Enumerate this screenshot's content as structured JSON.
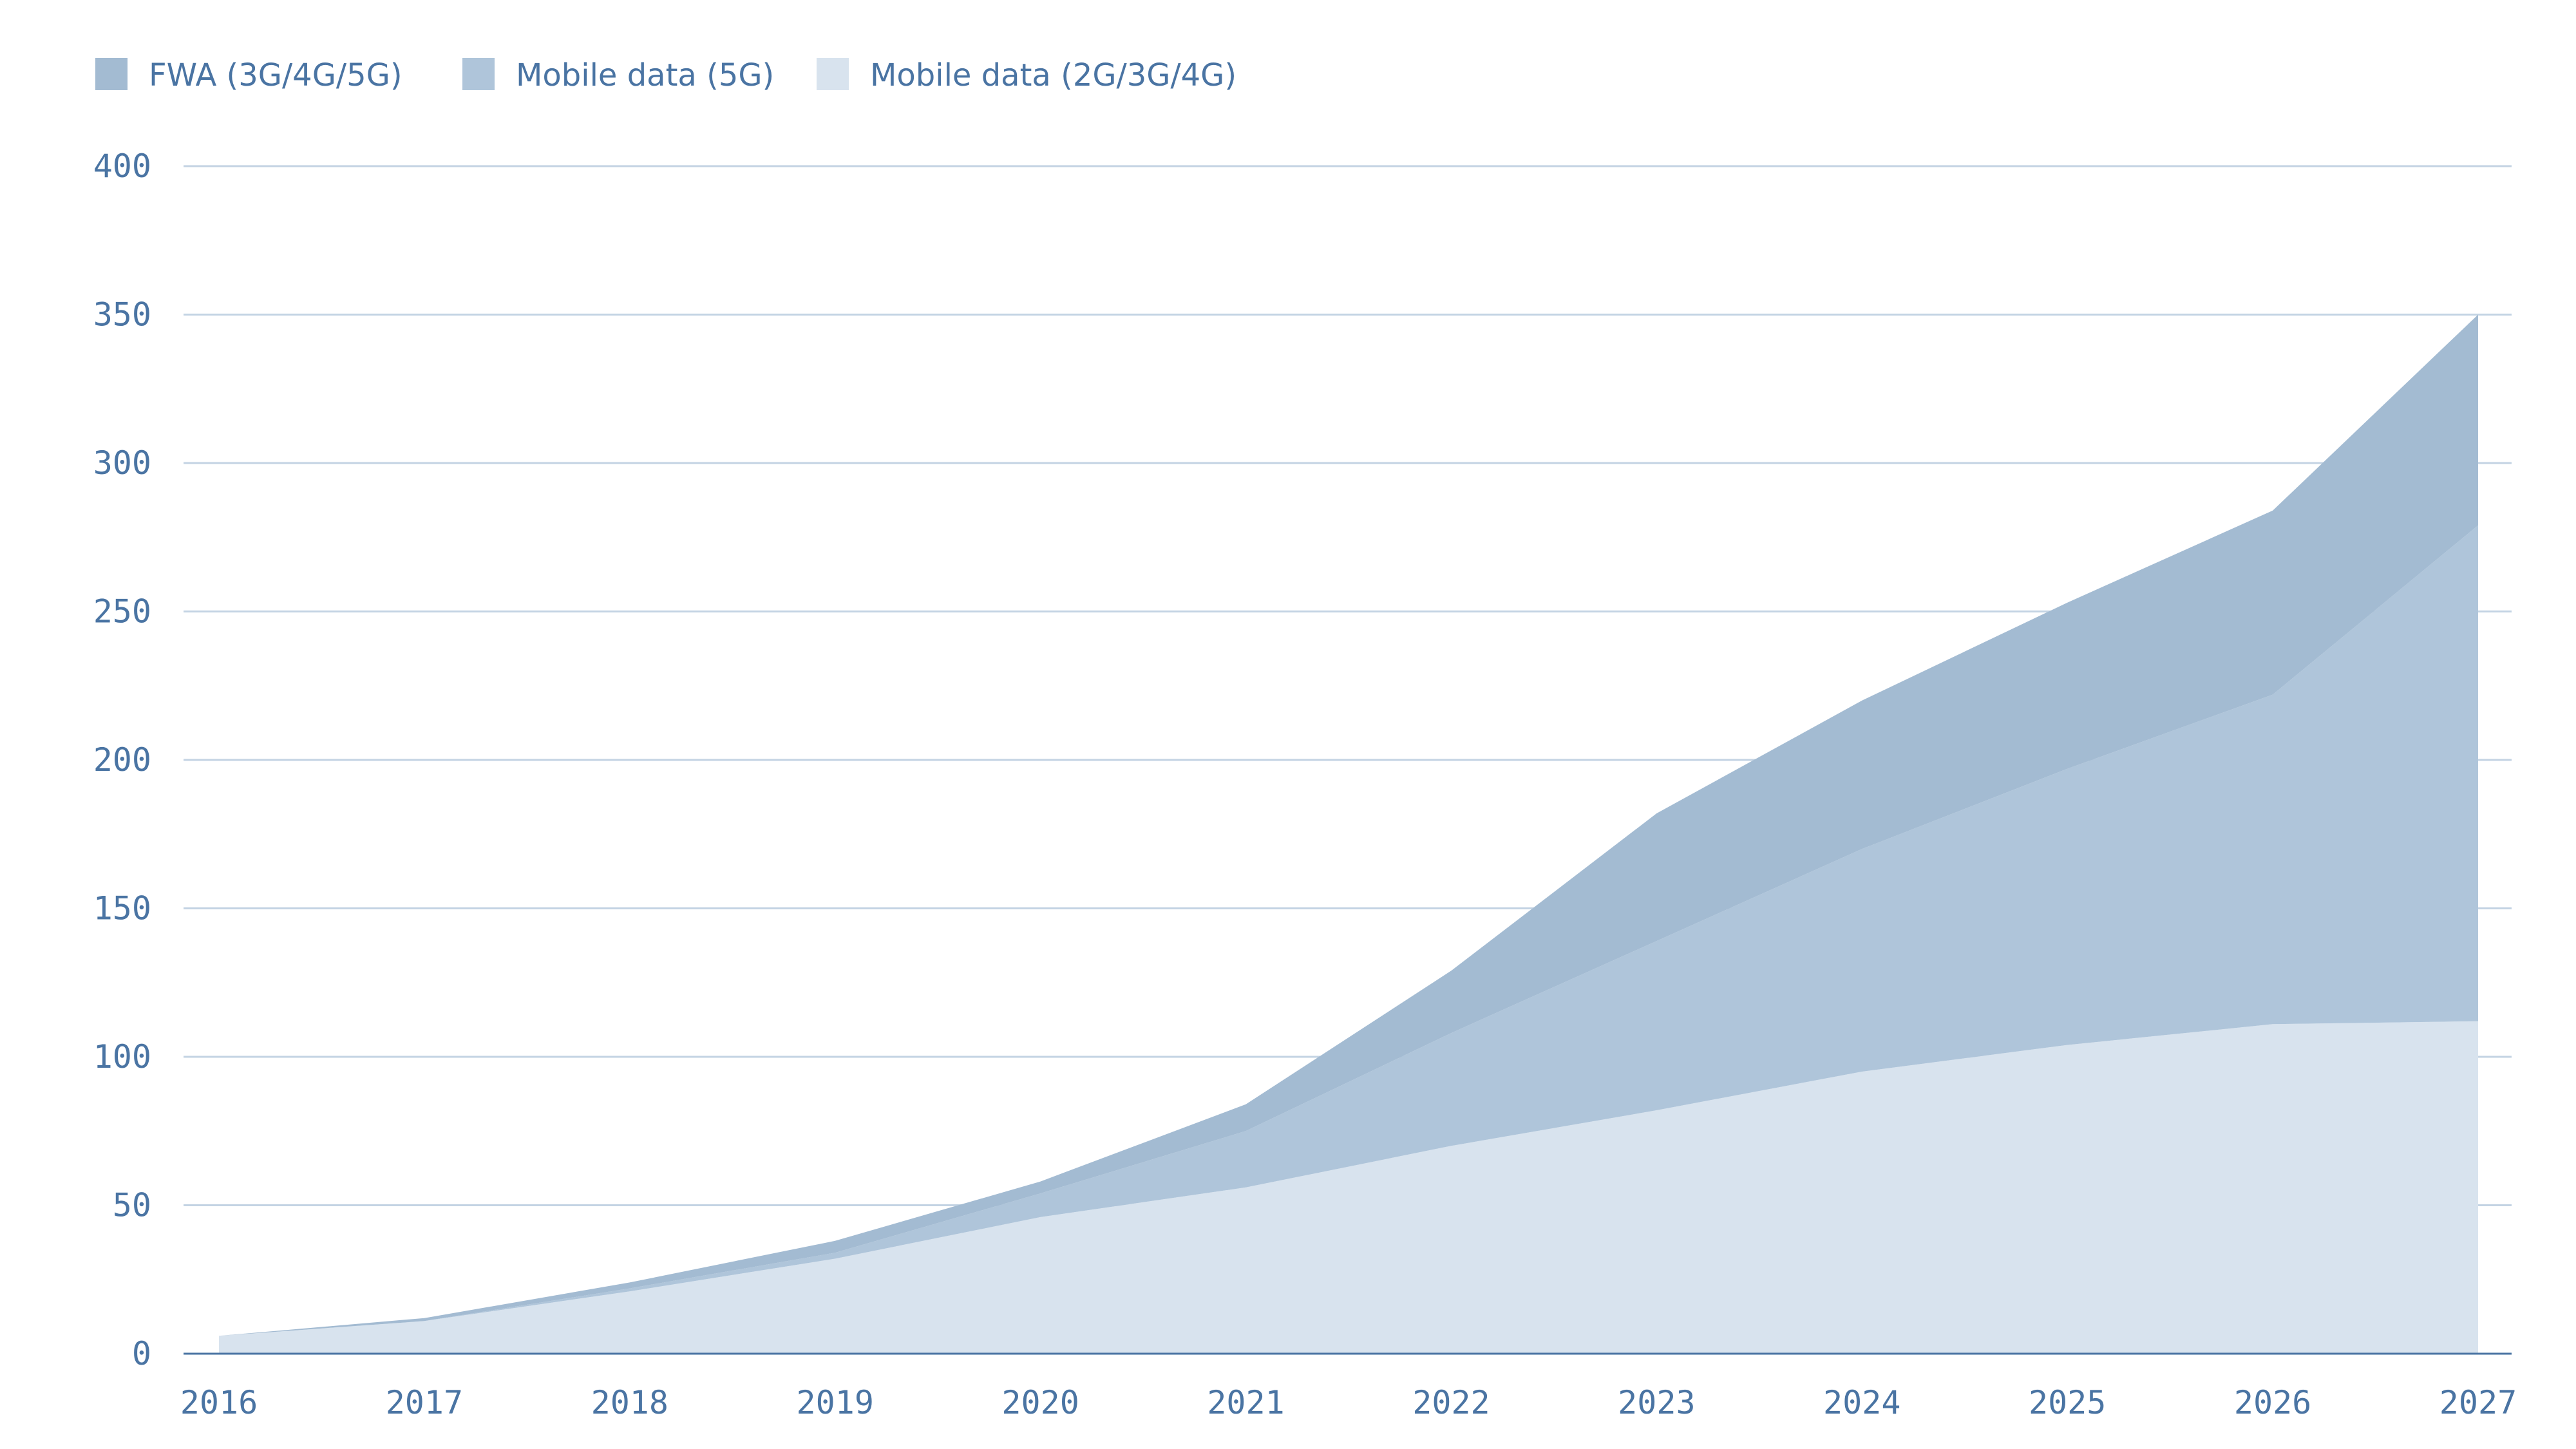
{
  "chart_data": {
    "type": "area",
    "stacked": true,
    "title": "",
    "xlabel": "",
    "ylabel": "",
    "x": [
      "2016",
      "2017",
      "2018",
      "2019",
      "2020",
      "2021",
      "2022",
      "2023",
      "2024",
      "2025",
      "2026",
      "2027"
    ],
    "ylim": [
      0,
      400
    ],
    "yticks": [
      "0",
      "50",
      "100",
      "150",
      "200",
      "250",
      "300",
      "350",
      "400"
    ],
    "grid": true,
    "legend_position": "top-left",
    "series": [
      {
        "name": "Mobile data (2G/3G/4G)",
        "color": "#d8e3ee",
        "values": [
          6,
          11,
          21,
          32,
          46,
          56,
          70,
          82,
          95,
          104,
          111,
          112
        ]
      },
      {
        "name": "Mobile data (5G)",
        "color": "#afc5da",
        "values": [
          0,
          0,
          1,
          2,
          8,
          19,
          38,
          57,
          75,
          93,
          111,
          167
        ]
      },
      {
        "name": "FWA (3G/4G/5G)",
        "color": "#a3bbd2",
        "values": [
          0,
          1,
          2,
          4,
          4,
          9,
          21,
          43,
          50,
          56,
          62,
          71
        ]
      }
    ],
    "legend": [
      {
        "label": "FWA (3G/4G/5G)",
        "color": "#a3bbd2"
      },
      {
        "label": "Mobile data (5G)",
        "color": "#afc5da"
      },
      {
        "label": "Mobile data (2G/3G/4G)",
        "color": "#d8e3ee"
      }
    ],
    "colors": {
      "text": "#4a74a3",
      "grid": "#c3d3e3",
      "axis": "#4a74a3"
    }
  }
}
